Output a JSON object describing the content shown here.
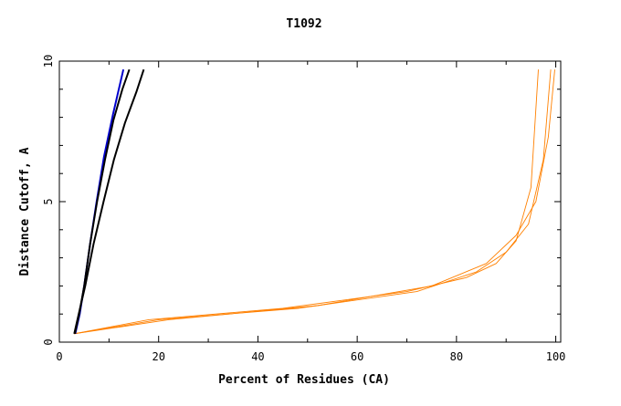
{
  "chart_data": {
    "type": "line",
    "title": "T1092",
    "xlabel": "Percent of Residues (CA)",
    "ylabel": "Distance Cutoff, A",
    "xlim": [
      0,
      101
    ],
    "ylim": [
      0,
      10
    ],
    "x_ticks": [
      "0",
      "20",
      "40",
      "60",
      "80",
      "100"
    ],
    "y_ticks": [
      "0",
      "5",
      "10"
    ],
    "grid": false,
    "colors": {
      "models": "#ff8000",
      "highlight_blue": "#0000cc",
      "highlight_black": "#000000",
      "frame": "#000000"
    },
    "series": [
      {
        "color": "#0000cc",
        "x": [
          3.2,
          4.1,
          5.0,
          6.2,
          7.5,
          9.0,
          10.8,
          12.9
        ],
        "y": [
          0.3,
          1.0,
          2.0,
          3.5,
          5.0,
          6.6,
          8.1,
          9.7
        ]
      },
      {
        "color": "#000000",
        "x": [
          3.0,
          3.9,
          5.2,
          6.9,
          8.9,
          11.0,
          13.2,
          15.5,
          17.0
        ],
        "y": [
          0.3,
          1.0,
          2.0,
          3.5,
          5.0,
          6.5,
          7.8,
          8.9,
          9.7
        ]
      },
      {
        "color": "#000000",
        "x": [
          3.1,
          4.0,
          5.0,
          6.2,
          7.6,
          9.2,
          10.9,
          12.7,
          14.1
        ],
        "y": [
          0.3,
          1.0,
          2.0,
          3.5,
          5.0,
          6.5,
          7.9,
          9.0,
          9.7
        ]
      },
      {
        "color": "#ff8000",
        "x": [
          3.0,
          18.0,
          45.0,
          70.0,
          82.0,
          88.0,
          92.0,
          95.0,
          96.5
        ],
        "y": [
          0.3,
          0.8,
          1.2,
          1.8,
          2.3,
          2.8,
          3.6,
          5.5,
          9.7
        ]
      },
      {
        "color": "#ff8000",
        "x": [
          3.0,
          20.0,
          48.0,
          72.0,
          84.0,
          90.0,
          94.5,
          97.5,
          99.0
        ],
        "y": [
          0.3,
          0.8,
          1.2,
          1.8,
          2.5,
          3.2,
          4.2,
          6.5,
          9.7
        ]
      },
      {
        "color": "#ff8000",
        "x": [
          3.0,
          22.0,
          52.0,
          75.0,
          86.0,
          92.0,
          96.0,
          98.5,
          99.8
        ],
        "y": [
          0.3,
          0.8,
          1.3,
          2.0,
          2.8,
          3.8,
          5.0,
          7.3,
          9.7
        ]
      }
    ]
  }
}
